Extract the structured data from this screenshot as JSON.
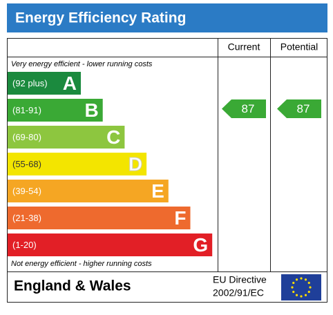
{
  "title": "Energy Efficiency Rating",
  "header": {
    "current": "Current",
    "potential": "Potential"
  },
  "top_note": "Very energy efficient - lower running costs",
  "bottom_note": "Not energy efficient - higher running costs",
  "bands": [
    {
      "range": "(92 plus)",
      "letter": "A",
      "color": "#1b8a3e"
    },
    {
      "range": "(81-91)",
      "letter": "B",
      "color": "#3aa935"
    },
    {
      "range": "(69-80)",
      "letter": "C",
      "color": "#8dc63f"
    },
    {
      "range": "(55-68)",
      "letter": "D",
      "color": "#f3e500"
    },
    {
      "range": "(39-54)",
      "letter": "E",
      "color": "#f5a623"
    },
    {
      "range": "(21-38)",
      "letter": "F",
      "color": "#ee6a2e"
    },
    {
      "range": "(1-20)",
      "letter": "G",
      "color": "#e21f26"
    }
  ],
  "current": {
    "value": 87,
    "band": 1
  },
  "potential": {
    "value": 87,
    "band": 1
  },
  "footer": {
    "region": "England & Wales",
    "directive_line1": "EU Directive",
    "directive_line2": "2002/91/EC"
  }
}
